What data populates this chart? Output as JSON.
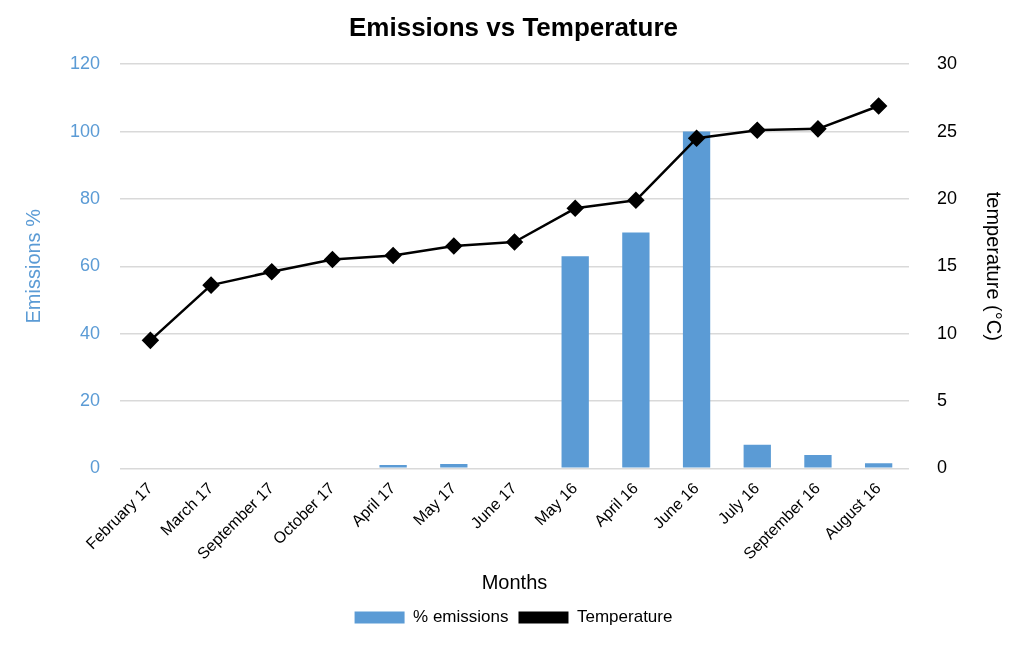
{
  "chart_data": {
    "type": "bar",
    "title": "Emissions vs Temperature",
    "xlabel": "Months",
    "ylabel": "Emissions %",
    "y2label": "temperature (°C)",
    "categories": [
      "February 17",
      "March 17",
      "September 17",
      "October 17",
      "April 17",
      "May 17",
      "June 17",
      "May 16",
      "April 16",
      "June 16",
      "July 16",
      "September 16",
      "August 16"
    ],
    "series": [
      {
        "name": "% emissions",
        "color": "#5b9bd5",
        "values": [
          0,
          0,
          0,
          0,
          1,
          1.3,
          0,
          63,
          70,
          100,
          7,
          4,
          1.5
        ]
      },
      {
        "name": "Temperature",
        "type": "line",
        "color": "#000000",
        "axis": "y2",
        "marker": "diamond",
        "values": [
          9.5,
          13.6,
          14.6,
          15.5,
          15.8,
          16.5,
          16.8,
          19.3,
          19.9,
          24.5,
          25.1,
          25.2,
          26.9
        ]
      }
    ],
    "ylim": [
      0,
      120
    ],
    "yticks": [
      0,
      20,
      40,
      60,
      80,
      100,
      120
    ],
    "y2lim": [
      0,
      30
    ],
    "y2ticks": [
      0,
      5,
      10,
      15,
      20,
      25,
      30
    ],
    "grid": "y",
    "legend": "bottom"
  }
}
